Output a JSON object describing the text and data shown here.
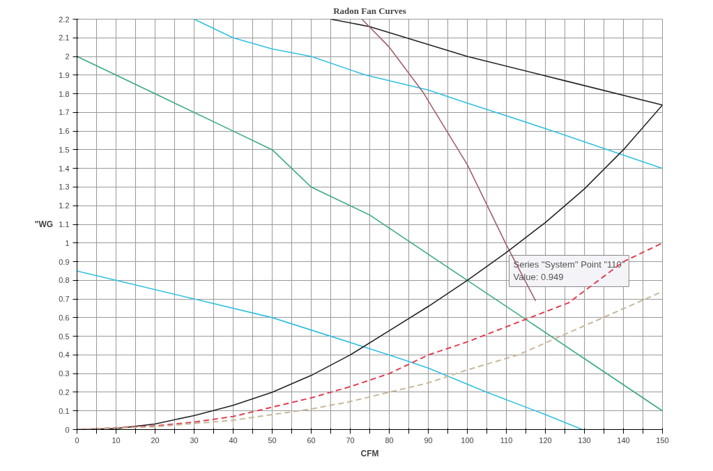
{
  "chart_data": {
    "type": "line",
    "title": "Radon Fan Curves",
    "xlabel": "CFM",
    "ylabel": "\"WG",
    "xlim": [
      0,
      150
    ],
    "ylim": [
      0,
      2.2
    ],
    "xticks": [
      0,
      {
        "value": 5,
        "label": null
      },
      10,
      {
        "value": 15,
        "label": null
      },
      20,
      {
        "value": 25,
        "label": null
      },
      30,
      {
        "value": 35,
        "label": null
      },
      40,
      {
        "value": 45,
        "label": null
      },
      50,
      {
        "value": 55,
        "label": null
      },
      60,
      {
        "value": 65,
        "label": null
      },
      70,
      {
        "value": 75,
        "label": null
      },
      80,
      {
        "value": 85,
        "label": null
      },
      90,
      {
        "value": 95,
        "label": null
      },
      100,
      {
        "value": 105,
        "label": null
      },
      110,
      {
        "value": 115,
        "label": null
      },
      120,
      {
        "value": 125,
        "label": null
      },
      130,
      {
        "value": 135,
        "label": null
      },
      140,
      {
        "value": 145,
        "label": null
      },
      150
    ],
    "yticks": [
      0,
      0.1,
      0.2,
      0.3,
      0.4,
      0.5,
      0.6,
      0.7,
      0.8,
      0.9,
      1,
      1.1,
      1.2,
      1.3,
      1.4,
      1.5,
      1.6,
      1.7,
      1.8,
      1.9,
      2,
      2.1,
      2.2
    ],
    "grid": true,
    "marker": "none",
    "series": [
      {
        "color": "#30c0e0",
        "x": [
          30,
          40,
          50,
          60,
          74,
          90,
          100,
          122,
          150
        ],
        "values": [
          2.2,
          2.1,
          2.04,
          2.0,
          1.9,
          1.82,
          1.75,
          1.6,
          1.4
        ]
      },
      {
        "color": "#3aaa80",
        "x": [
          0,
          20,
          40,
          50,
          60,
          75,
          90,
          100,
          130,
          150
        ],
        "values": [
          2.0,
          1.8,
          1.6,
          1.5,
          1.3,
          1.15,
          0.94,
          0.8,
          0.38,
          0.1
        ]
      },
      {
        "color": "#30c0e0",
        "x": [
          0,
          10,
          30,
          50,
          65,
          80,
          90,
          105,
          120,
          129.5
        ],
        "values": [
          0.85,
          0.8,
          0.7,
          0.6,
          0.5,
          0.4,
          0.33,
          0.2,
          0.08,
          0
        ]
      },
      {
        "color": "#222222",
        "x": [
          65,
          75,
          100,
          125,
          150
        ],
        "values": [
          2.2,
          2.16,
          2.0,
          1.87,
          1.74
        ]
      },
      {
        "color": "#a0606a",
        "x": [
          73,
          80,
          88.6,
          100,
          110,
          117.5
        ],
        "values": [
          2.2,
          2.05,
          1.81,
          1.42,
          0.99,
          0.69
        ]
      },
      {
        "color": "#222222",
        "x": [
          0,
          10,
          20,
          30,
          40,
          50,
          60,
          70,
          80,
          90,
          100,
          110,
          120,
          130,
          140,
          150
        ],
        "values": [
          0,
          0.005,
          0.03,
          0.075,
          0.13,
          0.2,
          0.29,
          0.4,
          0.53,
          0.66,
          0.8,
          0.949,
          1.11,
          1.29,
          1.5,
          1.74
        ]
      },
      {
        "color": "#e04050",
        "line_style": "dashed",
        "x": [
          0,
          20,
          30,
          40,
          50,
          60,
          70,
          80,
          90,
          100,
          126,
          140,
          150
        ],
        "values": [
          0,
          0.02,
          0.04,
          0.07,
          0.12,
          0.17,
          0.23,
          0.3,
          0.4,
          0.47,
          0.68,
          0.9,
          1.0
        ]
      },
      {
        "color": "#c8b89a",
        "line_style": "dashed",
        "x": [
          0,
          20,
          40,
          50,
          60,
          70,
          80,
          90,
          100,
          113,
          150
        ],
        "values": [
          0,
          0.015,
          0.05,
          0.08,
          0.11,
          0.15,
          0.2,
          0.25,
          0.32,
          0.4,
          0.74
        ]
      }
    ],
    "annotations": [
      {
        "text": "Series \"System\" Point \"110\"\nValue: 0.949",
        "x": 110,
        "y": 0.949
      }
    ]
  }
}
